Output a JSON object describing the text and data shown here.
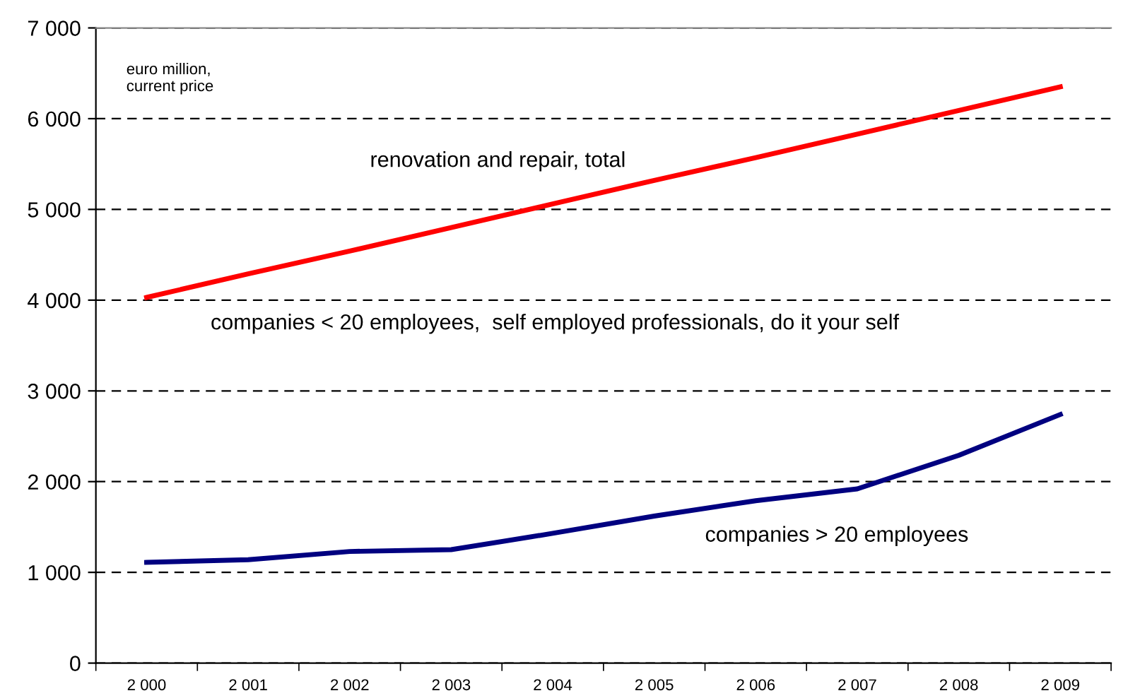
{
  "chart_data": {
    "type": "line",
    "categories": [
      "2 000",
      "2 001",
      "2 002",
      "2 003",
      "2 004",
      "2 005",
      "2 006",
      "2 007",
      "2 008",
      "2 009"
    ],
    "series": [
      {
        "name": "renovation and repair, total",
        "color": "#ff0000",
        "values": [
          4030,
          4290,
          4540,
          4800,
          5060,
          5320,
          5570,
          5830,
          6090,
          6350
        ]
      },
      {
        "name": "companies > 20 employees",
        "color": "#000080",
        "values": [
          1110,
          1140,
          1230,
          1250,
          1430,
          1620,
          1790,
          1920,
          2290,
          2740
        ]
      }
    ],
    "annotations": [
      "euro million,\ncurrent price",
      "companies < 20 employees,  self employed professionals, do it your self"
    ],
    "ylim": [
      0,
      7000
    ],
    "yticks": [
      0,
      {
        "value": 1000,
        "label": "1 000"
      },
      {
        "value": 2000,
        "label": "2 000"
      },
      {
        "value": 3000,
        "label": "3 000"
      },
      {
        "value": 4000,
        "label": "4 000"
      },
      {
        "value": 5000,
        "label": "5 000"
      },
      {
        "value": 6000,
        "label": "6 000"
      },
      {
        "value": 7000,
        "label": "7 000"
      }
    ],
    "grid": "y",
    "line_style": "solid",
    "marker": "none",
    "legend": false
  }
}
